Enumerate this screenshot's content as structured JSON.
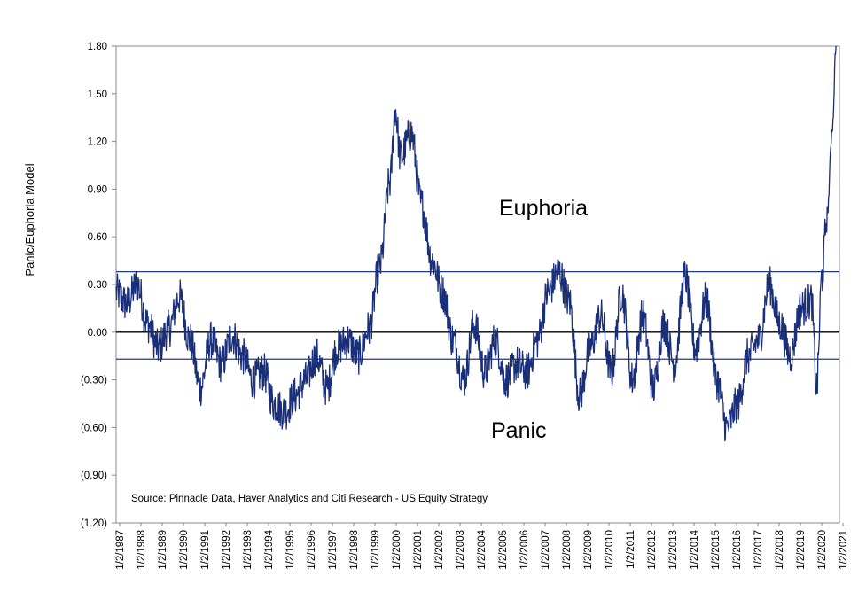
{
  "chart_data": {
    "type": "line",
    "title": "",
    "ylabel": "Panic/Euphoria  Model",
    "xlabel": "",
    "ylim": [
      -1.2,
      1.8
    ],
    "y_ticks": [
      1.8,
      1.5,
      1.2,
      0.9,
      0.6,
      0.3,
      0.0,
      -0.3,
      -0.6,
      -0.9,
      -1.2
    ],
    "y_tick_labels": [
      "1.80",
      "1.50",
      "1.20",
      "0.90",
      "0.60",
      "0.30",
      "0.00",
      "(0.30)",
      "(0.60)",
      "(0.90)",
      "(1.20)"
    ],
    "x_tick_labels": [
      "1/2/1987",
      "1/2/1988",
      "1/2/1989",
      "1/2/1990",
      "1/2/1991",
      "1/2/1992",
      "1/2/1993",
      "1/2/1994",
      "1/2/1995",
      "1/2/1996",
      "1/2/1997",
      "1/2/1998",
      "1/2/1999",
      "1/2/2000",
      "1/2/2001",
      "1/2/2002",
      "1/2/2003",
      "1/2/2004",
      "1/2/2005",
      "1/2/2006",
      "1/2/2007",
      "1/2/2008",
      "1/2/2009",
      "1/2/2010",
      "1/2/2011",
      "1/2/2012",
      "1/2/2013",
      "1/2/2014",
      "1/2/2015",
      "1/2/2016",
      "1/2/2017",
      "1/2/2018",
      "1/2/2019",
      "1/2/2020",
      "1/2/2021"
    ],
    "grid": false,
    "reference_lines": [
      {
        "value": 0.38,
        "color": "#1f3a8a"
      },
      {
        "value": 0.0,
        "color": "#000000"
      },
      {
        "value": -0.17,
        "color": "#1f3a8a"
      }
    ],
    "annotations": {
      "euphoria": "Euphoria",
      "panic": "Panic",
      "source": "Source:  Pinnacle Data, Haver Analytics and Citi Research - US Equity Strategy"
    },
    "series": [
      {
        "color": "#1a2f7a",
        "x": [
          "1987-01",
          "1987-07",
          "1988-01",
          "1988-07",
          "1989-01",
          "1989-07",
          "1990-01",
          "1990-07",
          "1991-01",
          "1991-07",
          "1992-01",
          "1992-07",
          "1993-01",
          "1993-07",
          "1994-01",
          "1994-07",
          "1995-01",
          "1995-07",
          "1996-01",
          "1996-07",
          "1997-01",
          "1997-07",
          "1998-01",
          "1998-07",
          "1999-01",
          "1999-07",
          "2000-01",
          "2000-04",
          "2000-07",
          "2001-01",
          "2001-07",
          "2002-01",
          "2002-07",
          "2003-01",
          "2003-07",
          "2004-01",
          "2004-07",
          "2005-01",
          "2005-07",
          "2006-01",
          "2006-07",
          "2007-01",
          "2007-07",
          "2008-01",
          "2008-07",
          "2009-01",
          "2009-07",
          "2010-01",
          "2010-07",
          "2011-01",
          "2011-07",
          "2012-01",
          "2012-07",
          "2013-01",
          "2013-07",
          "2014-01",
          "2014-07",
          "2015-01",
          "2015-07",
          "2016-01",
          "2016-07",
          "2017-01",
          "2017-07",
          "2018-01",
          "2018-07",
          "2019-01",
          "2019-07",
          "2020-01",
          "2020-04",
          "2020-07",
          "2020-10",
          "2021-01",
          "2021-03"
        ],
        "values": [
          0.25,
          0.18,
          0.3,
          0.05,
          -0.1,
          0.02,
          0.22,
          -0.05,
          -0.35,
          -0.05,
          -0.2,
          -0.02,
          -0.15,
          -0.3,
          -0.25,
          -0.45,
          -0.5,
          -0.4,
          -0.3,
          -0.15,
          -0.35,
          -0.1,
          -0.05,
          -0.15,
          0.02,
          0.4,
          0.95,
          1.4,
          1.1,
          1.25,
          0.8,
          0.45,
          0.25,
          -0.05,
          -0.3,
          0.05,
          -0.25,
          -0.05,
          -0.3,
          -0.2,
          -0.25,
          -0.05,
          0.25,
          0.38,
          0.2,
          -0.4,
          -0.1,
          0.1,
          -0.25,
          0.25,
          -0.3,
          0.1,
          -0.35,
          0.05,
          -0.2,
          0.35,
          -0.1,
          0.2,
          -0.3,
          -0.6,
          -0.45,
          -0.15,
          -0.05,
          0.3,
          0.05,
          -0.15,
          0.15,
          0.2,
          -0.35,
          0.35,
          0.75,
          1.3,
          1.8
        ]
      }
    ]
  }
}
